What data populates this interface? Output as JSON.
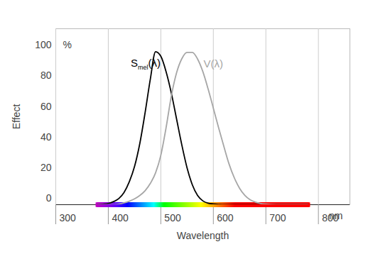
{
  "chart_data": {
    "type": "line",
    "x_label": "Wavelength",
    "y_label": "Effect",
    "x_unit": "nm",
    "y_unit": "%",
    "xlim": [
      300,
      860
    ],
    "xticks": [
      300,
      400,
      500,
      600,
      700,
      800
    ],
    "ylim": [
      0,
      115
    ],
    "yticks": [
      0,
      20,
      40,
      60,
      80,
      100
    ],
    "grid": true,
    "spectrum": [
      380,
      780
    ],
    "x": [
      380,
      390,
      400,
      410,
      420,
      430,
      440,
      450,
      460,
      470,
      480,
      490,
      500,
      510,
      520,
      530,
      540,
      550,
      560,
      570,
      580,
      590,
      600,
      610,
      620,
      630,
      640,
      650,
      660,
      670,
      680,
      690,
      700,
      710,
      720,
      730,
      740,
      750,
      760,
      770,
      780
    ],
    "series": [
      {
        "name": "Smel(λ)",
        "color": "#000000",
        "values": [
          0,
          0.3,
          0.8,
          2,
          4,
          8,
          15,
          25,
          40,
          60,
          82,
          100,
          97,
          87,
          73,
          56,
          39,
          24,
          13,
          6,
          2.5,
          1,
          0.5,
          0.2,
          0,
          0,
          0,
          0,
          0,
          0,
          0,
          0,
          0,
          0,
          0,
          0,
          0,
          0,
          0,
          0,
          0
        ]
      },
      {
        "name": "V(λ)",
        "color": "#a6a6a6",
        "values": [
          0,
          0.01,
          0.04,
          0.1,
          0.4,
          1.2,
          2.3,
          3.8,
          6,
          9.1,
          13.9,
          20.8,
          32.3,
          50.3,
          71,
          86.2,
          95.4,
          99.5,
          99.5,
          95.2,
          87,
          75.7,
          63.1,
          50.3,
          38.1,
          26.5,
          17.5,
          10.7,
          6.1,
          3.2,
          1.7,
          0.8,
          0.4,
          0.2,
          0.1,
          0.05,
          0.02,
          0.01,
          0,
          0,
          0
        ]
      }
    ]
  }
}
